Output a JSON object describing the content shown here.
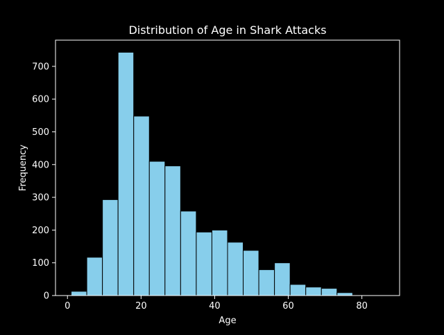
{
  "chart_data": {
    "type": "bar",
    "title": "Distribution of Age in Shark Attacks",
    "xlabel": "Age",
    "ylabel": "Frequency",
    "bin_edges": [
      1.0,
      5.25,
      9.5,
      13.75,
      18.0,
      22.25,
      26.5,
      30.75,
      35.0,
      39.25,
      43.5,
      47.75,
      52.0,
      56.25,
      60.5,
      64.75,
      69.0,
      73.25,
      77.5,
      81.75,
      86.0
    ],
    "values": [
      13,
      117,
      293,
      743,
      548,
      410,
      396,
      258,
      194,
      200,
      163,
      138,
      79,
      100,
      34,
      26,
      22,
      9,
      1,
      1
    ],
    "xlim": [
      -3.25,
      90.25
    ],
    "ylim": [
      0,
      780
    ],
    "xticks": [
      0,
      20,
      40,
      60,
      80
    ],
    "yticks": [
      0,
      100,
      200,
      300,
      400,
      500,
      600,
      700
    ],
    "grid": false,
    "colors": {
      "background": "#000000",
      "bar_fill": "#87ceeb",
      "bar_edge": "#000000",
      "axes": "#ffffff",
      "text": "#ffffff"
    }
  }
}
